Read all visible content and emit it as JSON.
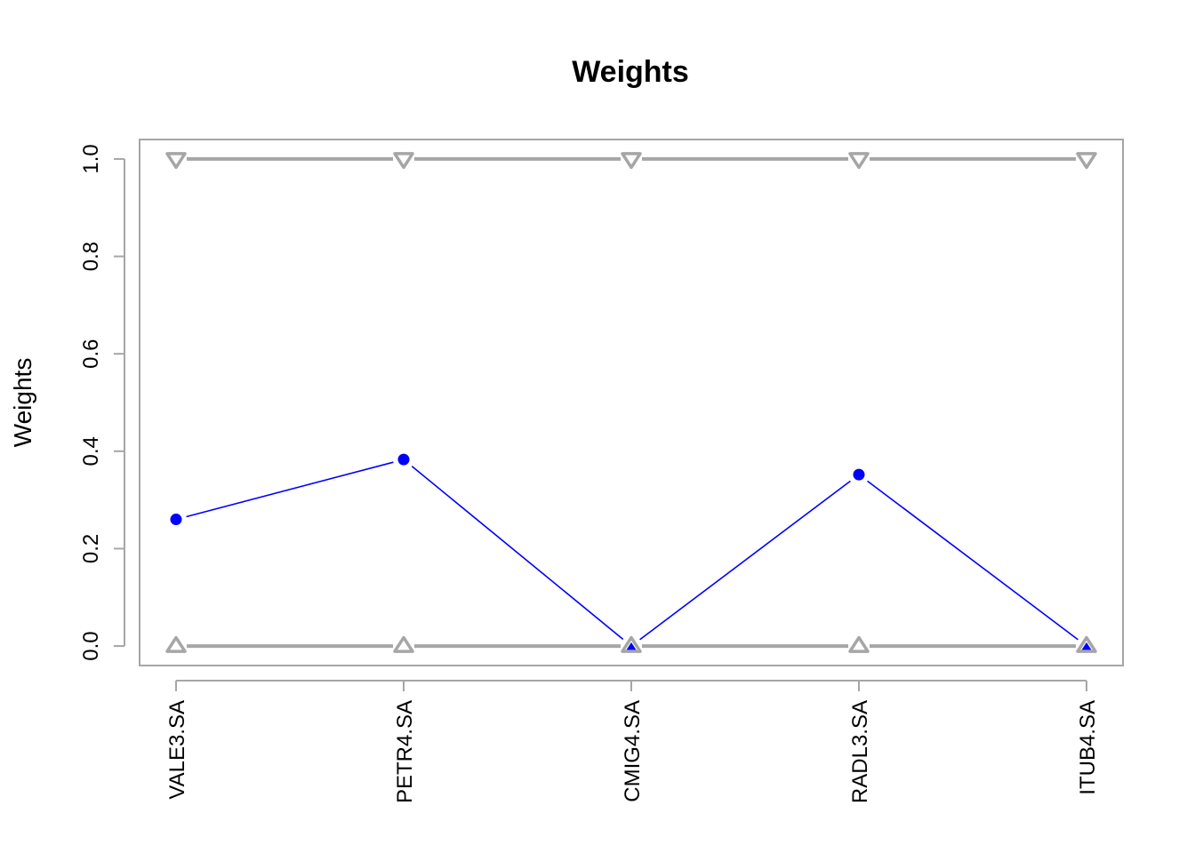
{
  "chart_data": {
    "type": "line",
    "title": "Weights",
    "xlabel": "",
    "ylabel": "Weights",
    "categories": [
      "VALE3.SA",
      "PETR4.SA",
      "CMIG4.SA",
      "RADL3.SA",
      "ITUB4.SA"
    ],
    "ylim": [
      -0.04,
      1.04
    ],
    "yticks": [
      0.0,
      0.2,
      0.4,
      0.6,
      0.8,
      1.0
    ],
    "ytick_labels": [
      "0.0",
      "0.2",
      "0.4",
      "0.6",
      "0.8",
      "1.0"
    ],
    "grid": false,
    "series": [
      {
        "values": [
          0.26,
          0.383,
          0.0,
          0.352,
          0.0
        ],
        "color": "#0000ff",
        "marker": "filled-circle"
      },
      {
        "values": [
          1.0,
          1.0,
          1.0,
          1.0,
          1.0
        ],
        "color": "#a6a6a6",
        "marker": "open-triangle-down"
      },
      {
        "values": [
          0.0,
          0.0,
          0.0,
          0.0,
          0.0
        ],
        "color": "#a6a6a6",
        "marker": "open-triangle-up"
      }
    ],
    "colors": {
      "weights": "#0000ff",
      "bounds": "#a6a6a6",
      "axes": "#a6a6a6"
    }
  }
}
